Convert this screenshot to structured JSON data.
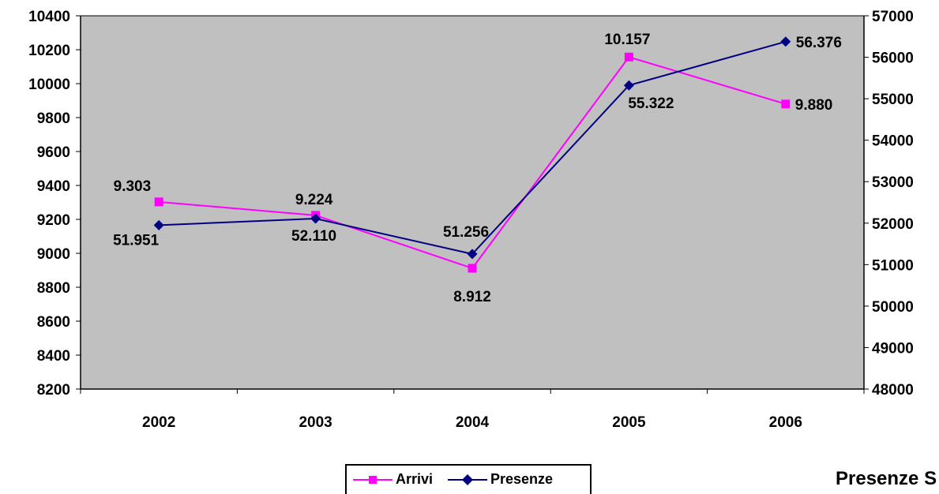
{
  "chart_data": {
    "type": "line",
    "categories": [
      "2002",
      "2003",
      "2004",
      "2005",
      "2006"
    ],
    "series": [
      {
        "name": "Arrivi",
        "axis": "left",
        "color": "#FF00FF",
        "marker": "square",
        "values": [
          9303,
          9224,
          8912,
          10157,
          9880
        ],
        "labels": [
          "9.303",
          "9.224",
          "8.912",
          "10.157",
          "9.880"
        ]
      },
      {
        "name": "Presenze",
        "axis": "right",
        "color": "#000080",
        "marker": "diamond",
        "values": [
          51951,
          52110,
          51256,
          55322,
          56376
        ],
        "labels": [
          "51.951",
          "52.110",
          "51.256",
          "55.322",
          "56.376"
        ]
      }
    ],
    "y_left": {
      "range": [
        8200,
        10400
      ],
      "ticks": [
        "10400",
        "10200",
        "10000",
        "9800",
        "9600",
        "9400",
        "9200",
        "9000",
        "8800",
        "8600",
        "8400",
        "8200"
      ]
    },
    "y_right": {
      "range": [
        48000,
        57000
      ],
      "ticks": [
        "57000",
        "56000",
        "55000",
        "54000",
        "53000",
        "52000",
        "51000",
        "50000",
        "49000",
        "48000"
      ]
    },
    "plot_background": "#C0C0C0",
    "grid": false,
    "legend_position": "bottom-center"
  },
  "legend": {
    "arrivi": "Arrivi",
    "presenze": "Presenze"
  },
  "footer": {
    "cut_text": "Presenze S"
  }
}
